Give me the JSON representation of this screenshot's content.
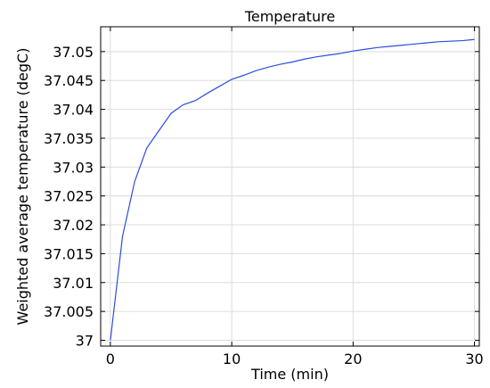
{
  "chart_data": {
    "type": "line",
    "title": "Temperature",
    "xlabel": "Time (min)",
    "ylabel": "Weighted average temperature (degC)",
    "xlim": [
      -0.8,
      30.4
    ],
    "ylim": [
      36.999,
      37.0543
    ],
    "xticks": [
      0,
      10,
      20,
      30
    ],
    "xtick_labels": [
      "0",
      "10",
      "20",
      "30"
    ],
    "yticks": [
      37,
      37.005,
      37.01,
      37.015,
      37.02,
      37.025,
      37.03,
      37.035,
      37.04,
      37.045,
      37.05
    ],
    "ytick_labels": [
      "37",
      "37.005",
      "37.01",
      "37.015",
      "37.02",
      "37.025",
      "37.03",
      "37.035",
      "37.04",
      "37.045",
      "37.05"
    ],
    "grid": true,
    "series": [
      {
        "color": "#2b4de0",
        "x": [
          0,
          1,
          2,
          3,
          4,
          5,
          6,
          7,
          8,
          9,
          10,
          11,
          12,
          13,
          14,
          15,
          16,
          17,
          18,
          19,
          20,
          21,
          22,
          23,
          24,
          25,
          26,
          27,
          28,
          29,
          30
        ],
        "y": [
          37.0,
          37.018,
          37.0275,
          37.0333,
          37.0363,
          37.0393,
          37.0408,
          37.0415,
          37.0428,
          37.044,
          37.0452,
          37.0459,
          37.0467,
          37.0473,
          37.0478,
          37.0482,
          37.0487,
          37.0491,
          37.0494,
          37.0497,
          37.0501,
          37.0504,
          37.0507,
          37.0509,
          37.0511,
          37.0513,
          37.0515,
          37.0517,
          37.0518,
          37.0519,
          37.0521
        ]
      }
    ]
  }
}
